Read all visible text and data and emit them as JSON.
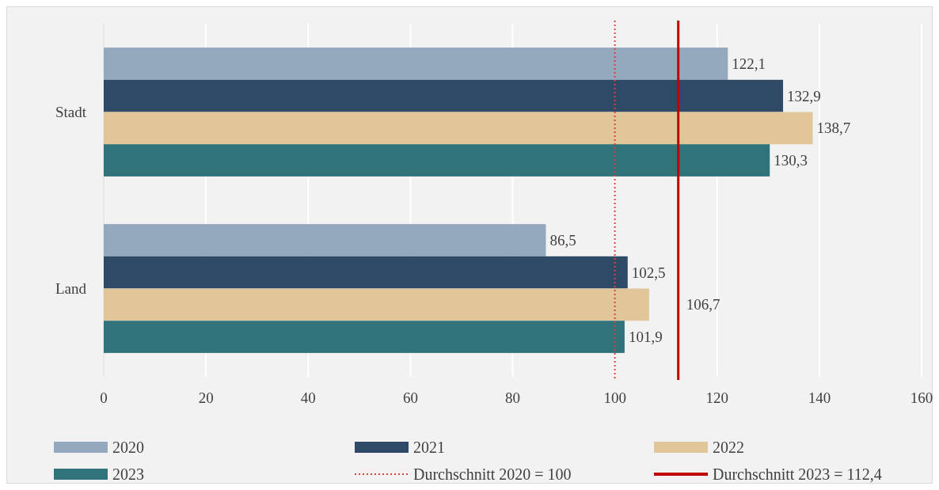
{
  "chart_data": {
    "type": "bar",
    "orientation": "horizontal",
    "categories": [
      "Stadt",
      "Land"
    ],
    "series": [
      {
        "name": "2020",
        "color": "#94a9be",
        "values": [
          122.1,
          86.5
        ],
        "value_labels": [
          "122,1",
          "86,5"
        ]
      },
      {
        "name": "2021",
        "color": "#2e4a66",
        "values": [
          132.9,
          102.5
        ],
        "value_labels": [
          "132,9",
          "102,5"
        ]
      },
      {
        "name": "2022",
        "color": "#e0c699",
        "values": [
          138.7,
          106.7
        ],
        "value_labels": [
          "138,7",
          "106,7"
        ]
      },
      {
        "name": "2023",
        "color": "#31737b",
        "values": [
          130.3,
          101.9
        ],
        "value_labels": [
          "130,3",
          "101,9"
        ]
      }
    ],
    "xlim": [
      0,
      160
    ],
    "xticks": [
      0,
      20,
      40,
      60,
      80,
      100,
      120,
      140,
      160
    ],
    "ref_lines": [
      {
        "axis": "x",
        "value": 100,
        "label": "Durchschnitt 2020 = 100",
        "color": "#d9403a",
        "line_style": "dotted"
      },
      {
        "axis": "x",
        "value": 112.4,
        "label": "Durchschnitt 2023 = 112,4",
        "color": "#c00000",
        "line_style": "solid"
      }
    ],
    "grid": "x",
    "legend": "bottom"
  }
}
